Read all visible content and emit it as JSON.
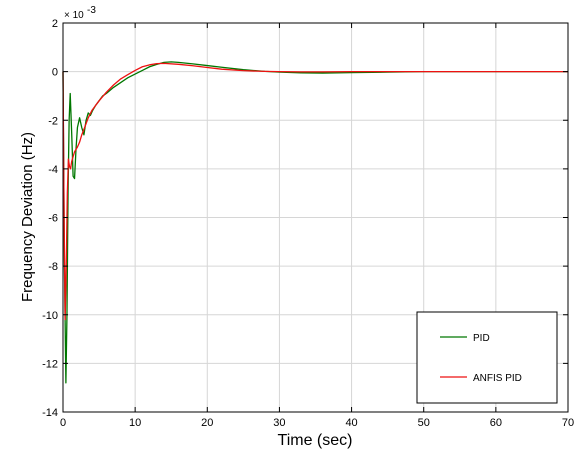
{
  "chart_data": {
    "type": "line",
    "xlabel": "Time (sec)",
    "ylabel": "Frequency Deviation (Hz)",
    "y_multiplier_label": "× 10",
    "y_multiplier_exponent": "-3",
    "xlim": [
      0,
      70
    ],
    "ylim": [
      -14,
      2
    ],
    "x_ticks": [
      0,
      10,
      20,
      30,
      40,
      50,
      60,
      70
    ],
    "y_ticks": [
      2,
      0,
      -2,
      -4,
      -6,
      -8,
      -10,
      -12,
      -14
    ],
    "grid": true,
    "legend_position": "bottom-right",
    "series": [
      {
        "name": "PID",
        "color": "#007700",
        "x": [
          0,
          0.2,
          0.4,
          0.55,
          0.7,
          0.85,
          1.0,
          1.2,
          1.4,
          1.6,
          1.8,
          2.0,
          2.3,
          2.6,
          2.9,
          3.2,
          3.5,
          3.8,
          4.1,
          4.5,
          5.0,
          5.5,
          6.0,
          7.0,
          8.0,
          9.0,
          10.0,
          11.0,
          12.0,
          13.0,
          14.0,
          15.0,
          16.0,
          18.0,
          20.0,
          22.0,
          25.0,
          28.0,
          30.0,
          33.0,
          36.0,
          40.0,
          45.0,
          50.0,
          55.0,
          60.0,
          65.0,
          70.0
        ],
        "values": [
          0,
          -8,
          -12.8,
          -10,
          -5,
          -2,
          -0.9,
          -2.5,
          -4.3,
          -4.4,
          -3.2,
          -2.3,
          -1.9,
          -2.3,
          -2.6,
          -2.0,
          -1.7,
          -1.8,
          -1.6,
          -1.4,
          -1.2,
          -1.0,
          -0.9,
          -0.65,
          -0.45,
          -0.25,
          -0.1,
          0.05,
          0.2,
          0.3,
          0.38,
          0.4,
          0.38,
          0.32,
          0.25,
          0.18,
          0.08,
          0.01,
          -0.02,
          -0.05,
          -0.06,
          -0.04,
          -0.02,
          0,
          0,
          0,
          0,
          0
        ]
      },
      {
        "name": "ANFIS PID",
        "color": "#ee1111",
        "x": [
          0,
          0.15,
          0.3,
          0.45,
          0.6,
          0.75,
          0.9,
          1.05,
          1.2,
          1.4,
          1.6,
          1.8,
          2.0,
          2.3,
          2.6,
          3.0,
          3.5,
          4.0,
          4.5,
          5.0,
          6.0,
          7.0,
          8.0,
          9.0,
          10.0,
          11.0,
          12.0,
          13.0,
          14.0,
          16.0,
          18.0,
          20.0,
          22.0,
          25.0,
          28.0,
          30.0,
          33.0,
          36.0,
          40.0,
          45.0,
          50.0,
          55.0,
          60.0,
          65.0,
          70.0
        ],
        "values": [
          0,
          -6,
          -10.2,
          -8,
          -5,
          -3.6,
          -3.9,
          -4.0,
          -3.7,
          -3.5,
          -3.3,
          -3.2,
          -3.1,
          -2.9,
          -2.6,
          -2.3,
          -1.9,
          -1.6,
          -1.4,
          -1.2,
          -0.85,
          -0.55,
          -0.3,
          -0.12,
          0.05,
          0.2,
          0.28,
          0.33,
          0.34,
          0.3,
          0.24,
          0.17,
          0.1,
          0.04,
          0.01,
          0,
          -0.01,
          -0.01,
          0,
          0,
          0,
          0,
          0,
          0,
          0
        ]
      }
    ]
  }
}
